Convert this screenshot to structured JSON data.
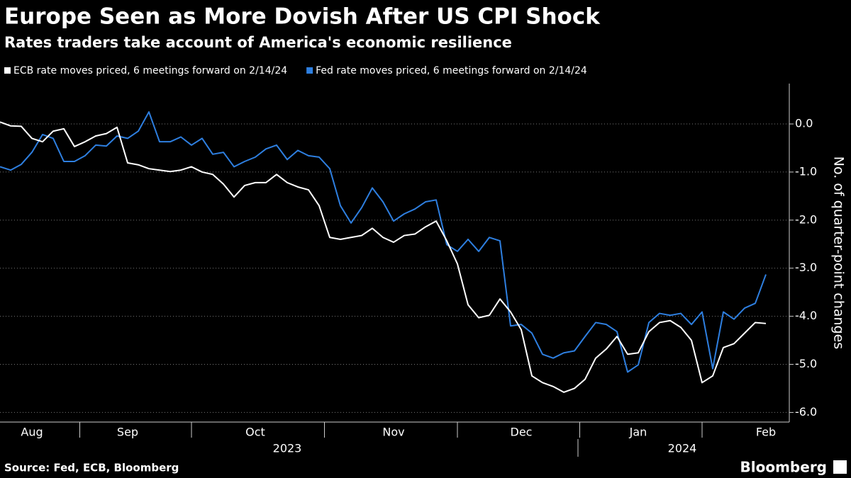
{
  "chart_data": {
    "type": "line",
    "title": "Europe Seen as More Dovish After US CPI Shock",
    "subtitle": "Rates traders take account of America's economic resilience",
    "y_label": "No. of quarter-point changes",
    "source": "Source: Fed, ECB, Bloomberg",
    "brand": "Bloomberg",
    "x_groups": [
      "2023",
      "2024"
    ],
    "categories": [
      null,
      null,
      null,
      "Aug",
      null,
      null,
      null,
      null,
      null,
      null,
      null,
      null,
      "Sep",
      null,
      null,
      null,
      null,
      null,
      null,
      null,
      null,
      null,
      null,
      null,
      "Oct",
      null,
      null,
      null,
      null,
      null,
      null,
      null,
      null,
      null,
      null,
      null,
      null,
      "Nov",
      null,
      null,
      null,
      null,
      null,
      null,
      null,
      null,
      null,
      null,
      null,
      "Dec",
      null,
      null,
      null,
      null,
      null,
      null,
      null,
      null,
      null,
      null,
      "Jan",
      null,
      null,
      null,
      null,
      null,
      null,
      null,
      null,
      null,
      null,
      null,
      "Feb"
    ],
    "series": [
      {
        "name": "ECB rate moves priced, 6 meetings forward on 2/14/24",
        "color": "#ffffff",
        "values": [
          0.04,
          -0.04,
          -0.05,
          -0.3,
          -0.37,
          -0.15,
          -0.1,
          -0.47,
          -0.37,
          -0.25,
          -0.2,
          -0.07,
          -0.81,
          -0.85,
          -0.93,
          -0.96,
          -0.99,
          -0.96,
          -0.89,
          -1.0,
          -1.05,
          -1.25,
          -1.52,
          -1.28,
          -1.22,
          -1.22,
          -1.05,
          -1.22,
          -1.31,
          -1.37,
          -1.7,
          -2.36,
          -2.4,
          -2.36,
          -2.32,
          -2.17,
          -2.36,
          -2.46,
          -2.32,
          -2.29,
          -2.14,
          -2.02,
          -2.43,
          -2.91,
          -3.76,
          -4.03,
          -3.98,
          -3.64,
          -3.91,
          -4.28,
          -5.24,
          -5.38,
          -5.46,
          -5.58,
          -5.5,
          -5.31,
          -4.87,
          -4.68,
          -4.42,
          -4.79,
          -4.76,
          -4.32,
          -4.13,
          -4.09,
          -4.23,
          -4.5,
          -5.38,
          -5.24,
          -4.65,
          -4.57,
          -4.35,
          -4.13,
          -4.15
        ]
      },
      {
        "name": "Fed rate moves priced, 6 meetings forward on 2/14/24",
        "color": "#2e7fe0",
        "values": [
          -0.89,
          -0.96,
          -0.84,
          -0.59,
          -0.22,
          -0.3,
          -0.78,
          -0.78,
          -0.66,
          -0.44,
          -0.46,
          -0.25,
          -0.3,
          -0.15,
          0.25,
          -0.37,
          -0.37,
          -0.27,
          -0.44,
          -0.3,
          -0.63,
          -0.59,
          -0.89,
          -0.78,
          -0.69,
          -0.52,
          -0.44,
          -0.74,
          -0.55,
          -0.66,
          -0.69,
          -0.93,
          -1.7,
          -2.06,
          -1.74,
          -1.33,
          -1.62,
          -2.02,
          -1.87,
          -1.77,
          -1.62,
          -1.58,
          -2.51,
          -2.65,
          -2.4,
          -2.65,
          -2.36,
          -2.43,
          -4.2,
          -4.17,
          -4.35,
          -4.79,
          -4.87,
          -4.76,
          -4.72,
          -4.42,
          -4.13,
          -4.17,
          -4.32,
          -5.16,
          -5.01,
          -4.13,
          -3.94,
          -3.98,
          -3.94,
          -4.17,
          -3.91,
          -5.09,
          -3.91,
          -4.06,
          -3.83,
          -3.73,
          -3.13
        ]
      }
    ],
    "ylim": [
      -6.2,
      0.84
    ],
    "yticks": [
      {
        "value": 0,
        "label": "0.0"
      },
      {
        "value": -1,
        "label": "-1.0"
      },
      {
        "value": -2,
        "label": "-2.0"
      },
      {
        "value": -3,
        "label": "-3.0"
      },
      {
        "value": -4,
        "label": "-4.0"
      },
      {
        "value": -5,
        "label": "-5.0"
      },
      {
        "value": -6,
        "label": "-6.0"
      }
    ],
    "grid": true
  }
}
